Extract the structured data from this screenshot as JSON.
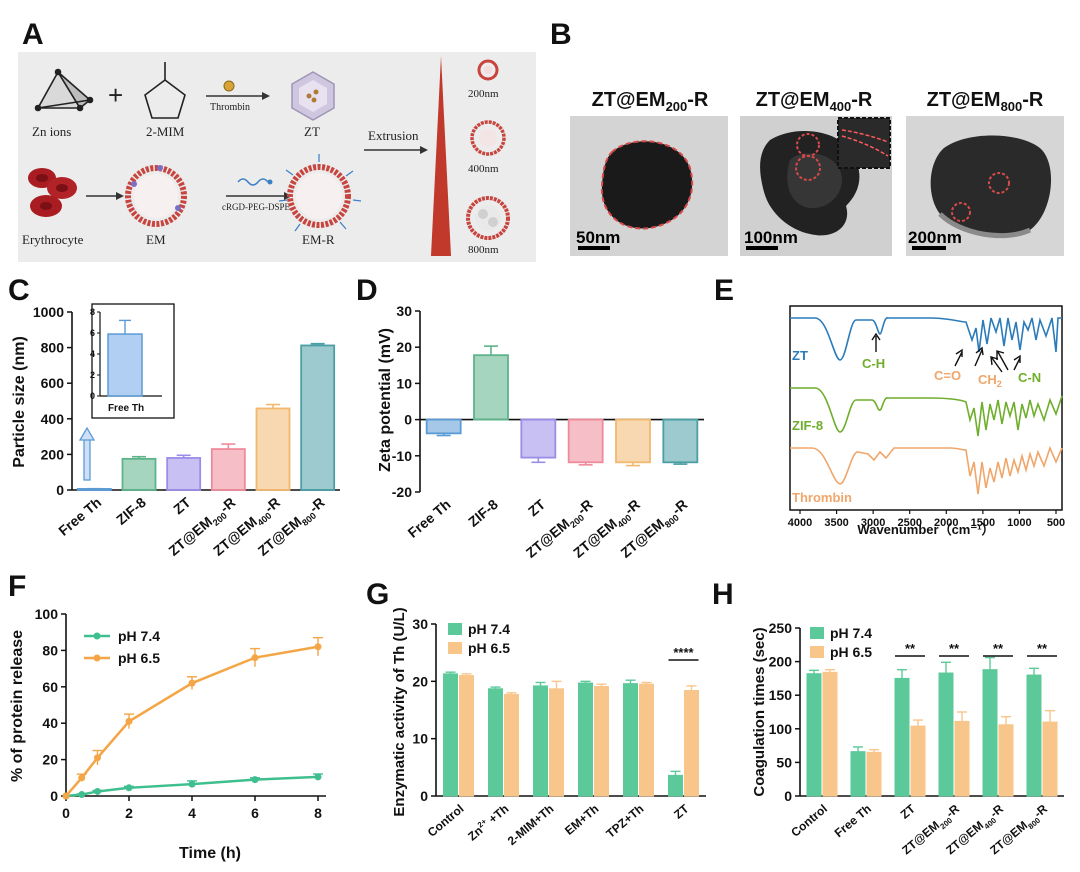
{
  "panels": {
    "A": "A",
    "B": "B",
    "C": "C",
    "D": "D",
    "E": "E",
    "F": "F",
    "G": "G",
    "H": "H"
  },
  "schematic": {
    "zn_ions": "Zn ions",
    "mim": "2-MIM",
    "thrombin": "Thrombin",
    "zt": "ZT",
    "extrusion": "Extrusion",
    "size_200": "200nm",
    "size_400": "400nm",
    "size_800": "800nm",
    "erythrocyte": "Erythrocyte",
    "em": "EM",
    "peg": "cRGD-PEG-DSPE",
    "em_r": "EM-R",
    "plus": "+"
  },
  "tem": [
    {
      "prefix": "ZT@EM",
      "sub": "200",
      "suffix": "-R",
      "scale": "50nm"
    },
    {
      "prefix": "ZT@EM",
      "sub": "400",
      "suffix": "-R",
      "scale": "100nm"
    },
    {
      "prefix": "ZT@EM",
      "sub": "800",
      "suffix": "-R",
      "scale": "200nm"
    }
  ],
  "chart_data": [
    {
      "id": "C",
      "type": "bar",
      "ylabel": "Particle size (nm)",
      "ylim": [
        0,
        1000
      ],
      "yticks": [
        "0",
        "200",
        "400",
        "600",
        "800",
        "1000"
      ],
      "categories": [
        "Free Th",
        "ZIF-8",
        "ZT",
        "ZT@EM200-R",
        "ZT@EM400-R",
        "ZT@EM800-R"
      ],
      "values": [
        6,
        175,
        180,
        230,
        458,
        812
      ],
      "errors": [
        1.3,
        12,
        15,
        28,
        22,
        10
      ],
      "colors": [
        "#5b9bd5",
        "#5db38a",
        "#9a8de8",
        "#ef8a9a",
        "#f2b86f",
        "#4a9fa5"
      ],
      "inset": {
        "ylim": [
          0,
          8
        ],
        "yticks": [
          "0",
          "2",
          "4",
          "6",
          "8"
        ],
        "value": 5.9,
        "error": 1.3,
        "label": "Free Th"
      }
    },
    {
      "id": "D",
      "type": "bar",
      "ylabel": "Zeta potential (mV)",
      "ylim": [
        -20,
        30
      ],
      "yticks": [
        "-20",
        "-10",
        "0",
        "10",
        "20",
        "30"
      ],
      "categories": [
        "Free Th",
        "ZIF-8",
        "ZT",
        "ZT@EM200-R",
        "ZT@EM400-R",
        "ZT@EM800-R"
      ],
      "values": [
        -3.8,
        17.8,
        -10.5,
        -11.8,
        -11.8,
        -11.8
      ],
      "errors": [
        0.6,
        2.5,
        1.3,
        0.7,
        0.9,
        0.5
      ],
      "colors": [
        "#5b9bd5",
        "#5db38a",
        "#9a8de8",
        "#ef8a9a",
        "#f2b86f",
        "#4a9fa5"
      ]
    },
    {
      "id": "E",
      "type": "line",
      "xlabel": "Wavenumber（cm⁻¹）",
      "xticks": [
        "4000",
        "3500",
        "3000",
        "2500",
        "2000",
        "1500",
        "1000",
        "500"
      ],
      "series": [
        {
          "name": "ZT",
          "color": "#2b7bba"
        },
        {
          "name": "ZIF-8",
          "color": "#6fae2c"
        },
        {
          "name": "Thrombin",
          "color": "#f0a66a"
        }
      ],
      "annotations": [
        "C-H",
        "C=O",
        "CH",
        "2",
        "C-N"
      ]
    },
    {
      "id": "F",
      "type": "line",
      "xlabel": "Time (h)",
      "ylabel": "% of protein release",
      "xlim": [
        0,
        8
      ],
      "ylim": [
        0,
        100
      ],
      "xticks": [
        "0",
        "2",
        "4",
        "6",
        "8"
      ],
      "yticks": [
        "0",
        "20",
        "40",
        "60",
        "80",
        "100"
      ],
      "x": [
        0,
        0.5,
        1,
        2,
        4,
        6,
        8
      ],
      "series": [
        {
          "name": "pH 7.4",
          "color": "#3fbf8f",
          "values": [
            0,
            0.8,
            2.5,
            4.5,
            6.5,
            9,
            10.5
          ],
          "errors": [
            0,
            0.3,
            0.6,
            0.8,
            1.8,
            1.0,
            1.6
          ]
        },
        {
          "name": "pH 6.5",
          "color": "#f4a546",
          "values": [
            0,
            10,
            21,
            41,
            62,
            76,
            82
          ],
          "errors": [
            0,
            2,
            4,
            4,
            3.5,
            5,
            5
          ]
        }
      ]
    },
    {
      "id": "G",
      "type": "bar",
      "ylabel": "Enzymatic activity of Th (U/L)",
      "ylim": [
        0,
        30
      ],
      "yticks": [
        "0",
        "10",
        "20",
        "30"
      ],
      "categories": [
        "Control",
        "Zn2+ +Th",
        "2-MIM+Th",
        "EM+Th",
        "TPZ+Th",
        "ZT"
      ],
      "series": [
        {
          "name": "pH 7.4",
          "color": "#5cc99a",
          "values": [
            21.3,
            18.7,
            19.2,
            19.7,
            19.6,
            3.6
          ],
          "errors": [
            0.3,
            0.3,
            0.6,
            0.3,
            0.6,
            0.7
          ]
        },
        {
          "name": "pH 6.5",
          "color": "#f8c58b",
          "values": [
            21.0,
            17.7,
            18.7,
            19.1,
            19.5,
            18.4
          ],
          "errors": [
            0.3,
            0.3,
            1.3,
            0.4,
            0.3,
            0.8
          ]
        }
      ],
      "significance": [
        {
          "index": 5,
          "label": "****"
        }
      ]
    },
    {
      "id": "H",
      "type": "bar",
      "ylabel": "Coagulation times (sec)",
      "ylim": [
        0,
        250
      ],
      "yticks": [
        "0",
        "50",
        "100",
        "150",
        "200",
        "250"
      ],
      "categories": [
        "Control",
        "Free Th",
        "ZT",
        "ZT@EM200-R",
        "ZT@EM400-R",
        "ZT@EM800-R"
      ],
      "series": [
        {
          "name": "pH 7.4",
          "color": "#5cc99a",
          "values": [
            182,
            66,
            175,
            183,
            188,
            180
          ],
          "errors": [
            5,
            7,
            13,
            16,
            18,
            10
          ]
        },
        {
          "name": "pH 6.5",
          "color": "#f8c58b",
          "values": [
            184,
            65,
            104,
            111,
            106,
            110
          ],
          "errors": [
            4,
            4,
            9,
            14,
            12,
            17
          ]
        }
      ],
      "significance": [
        {
          "index": 2,
          "label": "**"
        },
        {
          "index": 3,
          "label": "**"
        },
        {
          "index": 4,
          "label": "**"
        },
        {
          "index": 5,
          "label": "**"
        }
      ]
    }
  ],
  "colors": {
    "text": "#111111",
    "red_membrane": "#c8443e",
    "red_dark": "#9b1b1b"
  }
}
